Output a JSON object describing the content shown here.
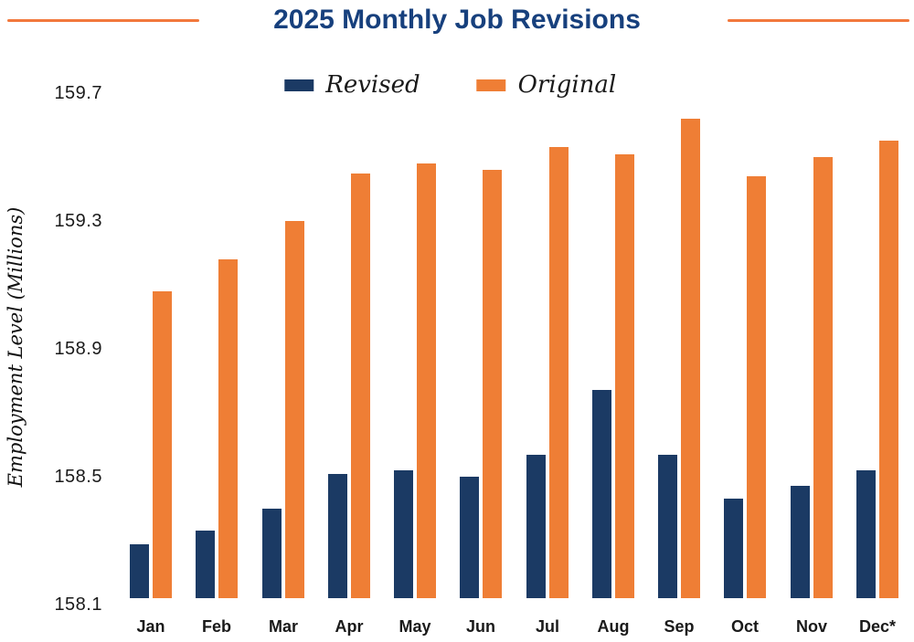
{
  "chart_data": {
    "type": "bar",
    "title": "2025 Monthly Job Revisions",
    "ylabel": "Employment Level (Millions)",
    "xlabel": "",
    "categories": [
      "Jan",
      "Feb",
      "Mar",
      "Apr",
      "May",
      "Jun",
      "Jul",
      "Aug",
      "Sep",
      "Oct",
      "Nov",
      "Dec*"
    ],
    "series": [
      {
        "name": "Revised",
        "color": "#1B3A64",
        "values": [
          158.29,
          158.33,
          158.4,
          158.51,
          158.52,
          158.5,
          158.57,
          158.77,
          158.57,
          158.43,
          158.47,
          158.52
        ]
      },
      {
        "name": "Original",
        "color": "#EF7E35",
        "values": [
          159.08,
          159.18,
          159.3,
          159.45,
          159.48,
          159.46,
          159.53,
          159.51,
          159.62,
          159.44,
          159.5,
          159.55
        ]
      }
    ],
    "y_ticks": [
      159.7,
      159.3,
      158.9,
      158.5,
      158.1
    ],
    "ylim": [
      158.1,
      159.7
    ],
    "grid": false,
    "legend_position": "top-center",
    "title_color": "#17407D",
    "accent_rule_color": "#F2783C",
    "text_color": "#1A1A1A"
  }
}
